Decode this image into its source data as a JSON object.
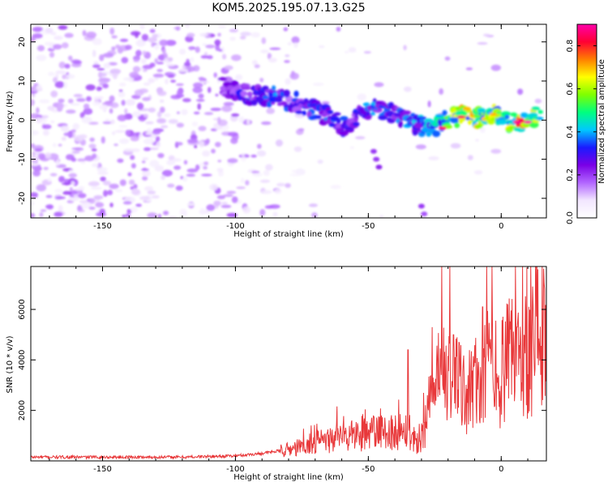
{
  "title": "KOM5.2025.195.07.13.G25",
  "chart_data": [
    {
      "type": "heatmap",
      "xlabel": "Height of straight line (km)",
      "ylabel": "Frequency (Hz)",
      "xlim": [
        -177,
        17
      ],
      "ylim": [
        -25,
        24.5
      ],
      "x_ticks": [
        -150,
        -100,
        -50,
        0
      ],
      "y_ticks": [
        -20,
        -10,
        0,
        10,
        20
      ],
      "grid": false,
      "colorbar": {
        "label": "Normalized spectral amplitude",
        "range": [
          0,
          0.9
        ],
        "ticks": [
          0.0,
          0.2,
          0.4,
          0.6,
          0.8
        ],
        "colormap": [
          "#ffffff",
          "#f2e6ff",
          "#b266ff",
          "#7a00e6",
          "#1a1aff",
          "#00c8ff",
          "#00ff7f",
          "#7fff00",
          "#ffff00",
          "#ff8000",
          "#ff0033",
          "#ff00aa"
        ]
      },
      "ridge": [
        {
          "x": -105,
          "y": 8.5,
          "a": 0.25
        },
        {
          "x": -95,
          "y": 6.5,
          "a": 0.3
        },
        {
          "x": -85,
          "y": 6,
          "a": 0.35
        },
        {
          "x": -75,
          "y": 4,
          "a": 0.3
        },
        {
          "x": -65,
          "y": 1,
          "a": 0.35
        },
        {
          "x": -58,
          "y": -2,
          "a": 0.3
        },
        {
          "x": -50,
          "y": 3,
          "a": 0.35
        },
        {
          "x": -42,
          "y": 2,
          "a": 0.35
        },
        {
          "x": -33,
          "y": -1,
          "a": 0.35
        },
        {
          "x": -25,
          "y": -2,
          "a": 0.45
        },
        {
          "x": -20,
          "y": 0.5,
          "a": 0.55
        },
        {
          "x": -15,
          "y": 1,
          "a": 0.65
        },
        {
          "x": -8,
          "y": 0.5,
          "a": 0.6
        },
        {
          "x": -3,
          "y": 2,
          "a": 0.6
        },
        {
          "x": 3,
          "y": -0.5,
          "a": 0.65
        },
        {
          "x": 8,
          "y": -0.5,
          "a": 0.75
        },
        {
          "x": 15,
          "y": 1.5,
          "a": 0.5
        }
      ]
    },
    {
      "type": "line",
      "xlabel": "Height of straight line (km)",
      "ylabel": "SNR (10 * v/v)",
      "xlim": [
        -177,
        17
      ],
      "ylim": [
        0,
        7700
      ],
      "x_ticks": [
        -150,
        -100,
        -50,
        0
      ],
      "y_ticks": [
        2000,
        4000,
        6000
      ],
      "grid": false,
      "series": [
        {
          "color": "#e8383a",
          "trend": [
            {
              "x": -177,
              "y": 150
            },
            {
              "x": -120,
              "y": 150
            },
            {
              "x": -100,
              "y": 200
            },
            {
              "x": -90,
              "y": 300
            },
            {
              "x": -80,
              "y": 450
            },
            {
              "x": -70,
              "y": 700
            },
            {
              "x": -60,
              "y": 950
            },
            {
              "x": -50,
              "y": 1100
            },
            {
              "x": -40,
              "y": 1150
            },
            {
              "x": -35,
              "y": 1300
            },
            {
              "x": -31,
              "y": 600
            },
            {
              "x": -28,
              "y": 1700
            },
            {
              "x": -22,
              "y": 3600
            },
            {
              "x": -15,
              "y": 2800
            },
            {
              "x": -10,
              "y": 3000
            },
            {
              "x": -5,
              "y": 3800
            },
            {
              "x": 0,
              "y": 3500
            },
            {
              "x": 5,
              "y": 4200
            },
            {
              "x": 10,
              "y": 4300
            },
            {
              "x": 14,
              "y": 5600
            },
            {
              "x": 17,
              "y": 4800
            }
          ],
          "peaks": [
            {
              "x": -35,
              "y": 4400
            },
            {
              "x": -18,
              "y": 5000
            },
            {
              "x": -7,
              "y": 6100
            },
            {
              "x": 6,
              "y": 5300
            },
            {
              "x": 13,
              "y": 7700
            }
          ]
        }
      ]
    }
  ]
}
